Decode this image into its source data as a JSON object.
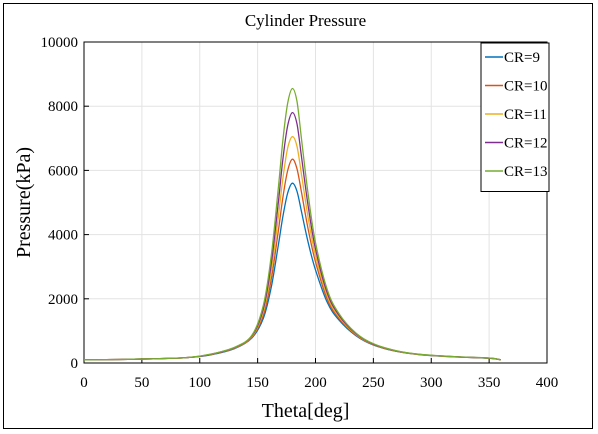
{
  "chart_data": {
    "type": "line",
    "title": "Cylinder Pressure",
    "xlabel": "Theta[deg]",
    "ylabel": "Pressure(kPa)",
    "xlim": [
      0,
      400
    ],
    "ylim": [
      0,
      10000
    ],
    "xticks": [
      0,
      50,
      100,
      150,
      200,
      250,
      300,
      350,
      400
    ],
    "yticks": [
      0,
      2000,
      4000,
      6000,
      8000,
      10000
    ],
    "grid": true,
    "legend_position": "top-right",
    "x": [
      0,
      30,
      60,
      90,
      110,
      130,
      145,
      155,
      162,
      168,
      172,
      176,
      180,
      184,
      188,
      194,
      200,
      210,
      220,
      235,
      250,
      270,
      290,
      320,
      350,
      360
    ],
    "series": [
      {
        "name": "CR=9",
        "color": "#0072BD",
        "values": [
          100,
          110,
          130,
          170,
          260,
          450,
          780,
          1400,
          2400,
          3700,
          4600,
          5300,
          5600,
          5350,
          4700,
          3700,
          2900,
          1900,
          1350,
          850,
          560,
          360,
          260,
          190,
          150,
          100
        ]
      },
      {
        "name": "CR=10",
        "color": "#D95319",
        "values": [
          100,
          110,
          130,
          170,
          265,
          460,
          800,
          1500,
          2650,
          4150,
          5200,
          6000,
          6350,
          6050,
          5300,
          4100,
          3150,
          2000,
          1400,
          870,
          570,
          365,
          262,
          192,
          150,
          100
        ]
      },
      {
        "name": "CR=11",
        "color": "#EDB120",
        "values": [
          100,
          110,
          130,
          170,
          270,
          470,
          820,
          1600,
          2900,
          4600,
          5800,
          6700,
          7050,
          6750,
          5850,
          4450,
          3350,
          2100,
          1450,
          890,
          580,
          370,
          265,
          194,
          152,
          100
        ]
      },
      {
        "name": "CR=12",
        "color": "#7E2F8E",
        "values": [
          100,
          110,
          130,
          170,
          275,
          480,
          840,
          1700,
          3150,
          5050,
          6400,
          7400,
          7800,
          7450,
          6400,
          4800,
          3550,
          2200,
          1500,
          910,
          590,
          375,
          268,
          196,
          153,
          100
        ]
      },
      {
        "name": "CR=13",
        "color": "#77AC30",
        "values": [
          100,
          110,
          130,
          170,
          280,
          490,
          860,
          1800,
          3400,
          5500,
          7000,
          8100,
          8550,
          8150,
          6950,
          5150,
          3750,
          2300,
          1550,
          930,
          600,
          380,
          270,
          198,
          155,
          100
        ]
      }
    ]
  }
}
